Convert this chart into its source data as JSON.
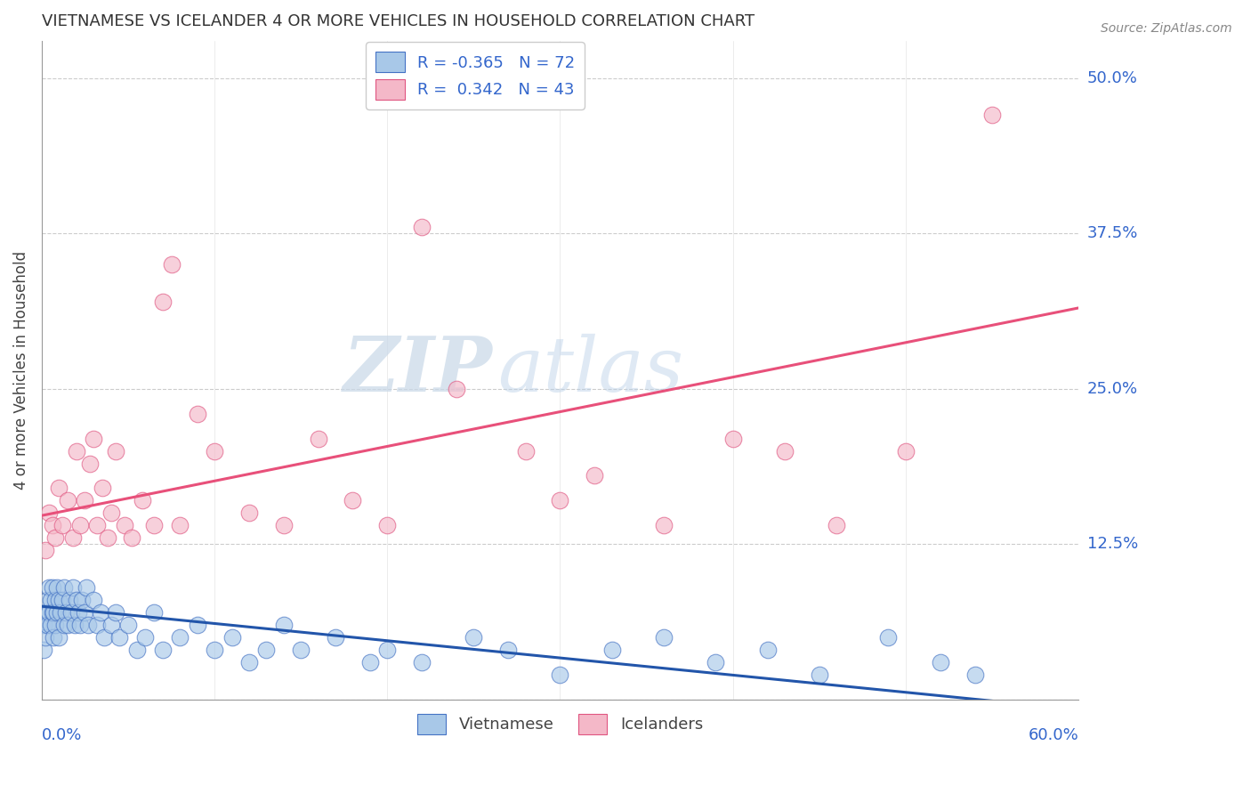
{
  "title": "VIETNAMESE VS ICELANDER 4 OR MORE VEHICLES IN HOUSEHOLD CORRELATION CHART",
  "source": "Source: ZipAtlas.com",
  "ylabel": "4 or more Vehicles in Household",
  "xlim": [
    0.0,
    0.6
  ],
  "ylim": [
    0.0,
    0.53
  ],
  "yticks": [
    0.0,
    0.125,
    0.25,
    0.375,
    0.5
  ],
  "ytick_labels": [
    "",
    "12.5%",
    "25.0%",
    "37.5%",
    "50.0%"
  ],
  "xtick_labels_left": "0.0%",
  "xtick_labels_right": "60.0%",
  "blue_fill": "#a8c8e8",
  "blue_edge": "#4472c4",
  "pink_fill": "#f4b8c8",
  "pink_edge": "#e05580",
  "blue_line_color": "#2255aa",
  "pink_line_color": "#e8507a",
  "legend_R_blue": "-0.365",
  "legend_N_blue": "72",
  "legend_R_pink": "0.342",
  "legend_N_pink": "43",
  "watermark_zip": "ZIP",
  "watermark_atlas": "atlas",
  "blue_line_x0": 0.0,
  "blue_line_y0": 0.075,
  "blue_line_x1": 0.6,
  "blue_line_y1": -0.008,
  "pink_line_x0": 0.0,
  "pink_line_y0": 0.148,
  "pink_line_x1": 0.6,
  "pink_line_y1": 0.315,
  "viet_x": [
    0.001,
    0.001,
    0.002,
    0.002,
    0.003,
    0.003,
    0.004,
    0.004,
    0.005,
    0.005,
    0.006,
    0.006,
    0.007,
    0.007,
    0.008,
    0.008,
    0.009,
    0.009,
    0.01,
    0.01,
    0.011,
    0.012,
    0.013,
    0.013,
    0.014,
    0.015,
    0.016,
    0.017,
    0.018,
    0.019,
    0.02,
    0.021,
    0.022,
    0.023,
    0.025,
    0.026,
    0.027,
    0.03,
    0.032,
    0.034,
    0.036,
    0.04,
    0.043,
    0.045,
    0.05,
    0.055,
    0.06,
    0.065,
    0.07,
    0.08,
    0.09,
    0.1,
    0.11,
    0.12,
    0.13,
    0.14,
    0.15,
    0.17,
    0.19,
    0.2,
    0.22,
    0.25,
    0.27,
    0.3,
    0.33,
    0.36,
    0.39,
    0.42,
    0.45,
    0.49,
    0.52,
    0.54
  ],
  "viet_y": [
    0.06,
    0.04,
    0.07,
    0.05,
    0.08,
    0.06,
    0.09,
    0.07,
    0.08,
    0.06,
    0.07,
    0.09,
    0.07,
    0.05,
    0.08,
    0.06,
    0.09,
    0.07,
    0.05,
    0.08,
    0.07,
    0.08,
    0.06,
    0.09,
    0.07,
    0.06,
    0.08,
    0.07,
    0.09,
    0.06,
    0.08,
    0.07,
    0.06,
    0.08,
    0.07,
    0.09,
    0.06,
    0.08,
    0.06,
    0.07,
    0.05,
    0.06,
    0.07,
    0.05,
    0.06,
    0.04,
    0.05,
    0.07,
    0.04,
    0.05,
    0.06,
    0.04,
    0.05,
    0.03,
    0.04,
    0.06,
    0.04,
    0.05,
    0.03,
    0.04,
    0.03,
    0.05,
    0.04,
    0.02,
    0.04,
    0.05,
    0.03,
    0.04,
    0.02,
    0.05,
    0.03,
    0.02
  ],
  "icel_x": [
    0.002,
    0.004,
    0.006,
    0.008,
    0.01,
    0.012,
    0.015,
    0.018,
    0.02,
    0.022,
    0.025,
    0.028,
    0.03,
    0.032,
    0.035,
    0.038,
    0.04,
    0.043,
    0.048,
    0.052,
    0.058,
    0.065,
    0.07,
    0.075,
    0.08,
    0.09,
    0.1,
    0.12,
    0.14,
    0.16,
    0.18,
    0.2,
    0.22,
    0.24,
    0.28,
    0.3,
    0.32,
    0.36,
    0.4,
    0.43,
    0.46,
    0.5,
    0.55
  ],
  "icel_y": [
    0.12,
    0.15,
    0.14,
    0.13,
    0.17,
    0.14,
    0.16,
    0.13,
    0.2,
    0.14,
    0.16,
    0.19,
    0.21,
    0.14,
    0.17,
    0.13,
    0.15,
    0.2,
    0.14,
    0.13,
    0.16,
    0.14,
    0.32,
    0.35,
    0.14,
    0.23,
    0.2,
    0.15,
    0.14,
    0.21,
    0.16,
    0.14,
    0.38,
    0.25,
    0.2,
    0.16,
    0.18,
    0.14,
    0.21,
    0.2,
    0.14,
    0.2,
    0.47
  ]
}
